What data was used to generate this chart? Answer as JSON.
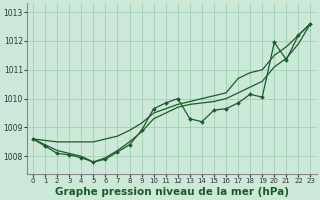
{
  "background_color": "#cce8d8",
  "grid_color": "#99ccb0",
  "line_color": "#1a5c28",
  "marker_color": "#1a5c28",
  "title": "Graphe pression niveau de la mer (hPa)",
  "title_fontsize": 7.5,
  "tick_fontsize": 5.0,
  "ylim": [
    1007.4,
    1013.3
  ],
  "xlim": [
    -0.5,
    23.5
  ],
  "yticks": [
    1008,
    1009,
    1010,
    1011,
    1012,
    1013
  ],
  "xticks": [
    0,
    1,
    2,
    3,
    4,
    5,
    6,
    7,
    8,
    9,
    10,
    11,
    12,
    13,
    14,
    15,
    16,
    17,
    18,
    19,
    20,
    21,
    22,
    23
  ],
  "series_marker": [
    1008.6,
    1008.35,
    1008.1,
    1008.05,
    1007.95,
    1007.8,
    1007.9,
    1008.15,
    1008.4,
    1008.9,
    1009.65,
    1009.85,
    1010.0,
    1009.3,
    1009.2,
    1009.6,
    1009.65,
    1009.85,
    1010.15,
    1010.05,
    1011.95,
    1011.35,
    1012.2,
    1012.6
  ],
  "series_upper": [
    1008.6,
    1008.55,
    1008.5,
    1008.5,
    1008.5,
    1008.5,
    1008.6,
    1008.7,
    1008.9,
    1009.15,
    1009.5,
    1009.65,
    1009.8,
    1009.9,
    1010.0,
    1010.1,
    1010.2,
    1010.7,
    1010.9,
    1011.0,
    1011.5,
    1011.8,
    1012.2,
    1012.6
  ],
  "series_lower": [
    1008.6,
    1008.4,
    1008.2,
    1008.1,
    1008.0,
    1007.8,
    1007.95,
    1008.2,
    1008.5,
    1008.85,
    1009.3,
    1009.5,
    1009.7,
    1009.8,
    1009.85,
    1009.9,
    1010.0,
    1010.2,
    1010.4,
    1010.6,
    1011.1,
    1011.4,
    1011.9,
    1012.6
  ]
}
